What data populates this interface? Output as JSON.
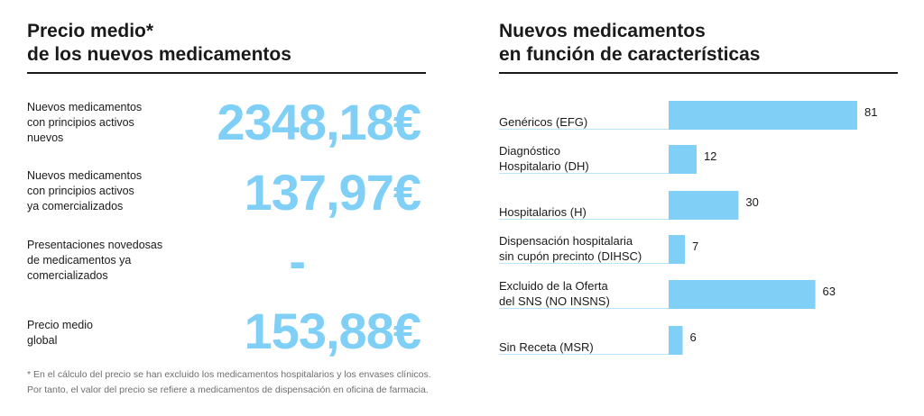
{
  "left": {
    "title_lines": [
      "Precio medio*",
      "de los nuevos medicamentos"
    ],
    "rows": [
      {
        "label_lines": [
          "Nuevos medicamentos",
          "con principios activos",
          "nuevos"
        ],
        "value": "2348,18€"
      },
      {
        "label_lines": [
          "Nuevos medicamentos",
          "con principios activos",
          "ya comercializados"
        ],
        "value": "137,97€"
      },
      {
        "label_lines": [
          "Presentaciones novedosas",
          "de medicamentos ya",
          "comercializados"
        ],
        "value": "-"
      },
      {
        "label_lines": [
          "Precio medio",
          "global"
        ],
        "value": "153,88€"
      }
    ],
    "footnote_lines": [
      "* En el cálculo del precio se han excluido los medicamentos hospitalarios y los envases clínicos.",
      "Por tanto, el valor del precio se refiere a medicamentos de dispensación en oficina de farmacia."
    ]
  },
  "right": {
    "title_lines": [
      "Nuevos medicamentos",
      "en función de características"
    ]
  },
  "colors": {
    "accent": "#7fcff6",
    "rule": "#1a1a1a",
    "divider": "#b9e3f8"
  },
  "chart_data": {
    "type": "bar",
    "orientation": "horizontal",
    "title": "Nuevos medicamentos en función de características",
    "categories": [
      [
        "Genéricos (EFG)"
      ],
      [
        "Diagnóstico",
        "Hospitalario (DH)"
      ],
      [
        "Hospitalarios (H)"
      ],
      [
        "Dispensación hospitalaria",
        "sin cupón precinto (DIHSC)"
      ],
      [
        "Excluido de la Oferta",
        "del SNS (NO INSNS)"
      ],
      [
        "Sin Receta (MSR)"
      ]
    ],
    "values": [
      81,
      12,
      30,
      7,
      63,
      6
    ],
    "xlim": [
      0,
      81
    ],
    "grid": false,
    "legend": "none"
  }
}
